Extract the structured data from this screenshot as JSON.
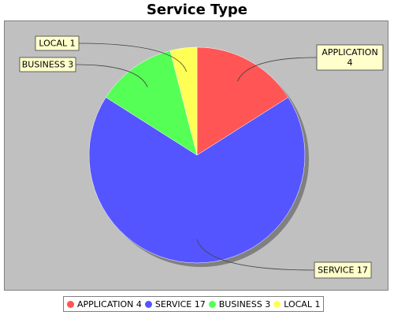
{
  "chart_data": {
    "type": "pie",
    "title": "Service Type",
    "slices": [
      {
        "label": "APPLICATION",
        "value": 4,
        "color": "#ff5555"
      },
      {
        "label": "SERVICE",
        "value": 17,
        "color": "#5555ff"
      },
      {
        "label": "BUSINESS",
        "value": 3,
        "color": "#55ff55"
      },
      {
        "label": "LOCAL",
        "value": 1,
        "color": "#ffff55"
      }
    ],
    "legend_position": "bottom",
    "background_color": "#c0c0c0",
    "label_box_color": "#ffffcc"
  },
  "legend": [
    {
      "label": "APPLICATION 4",
      "color": "#ff5555"
    },
    {
      "label": "SERVICE 17",
      "color": "#5555ff"
    },
    {
      "label": "BUSINESS 3",
      "color": "#55ff55"
    },
    {
      "label": "LOCAL 1",
      "color": "#ffff55"
    }
  ]
}
